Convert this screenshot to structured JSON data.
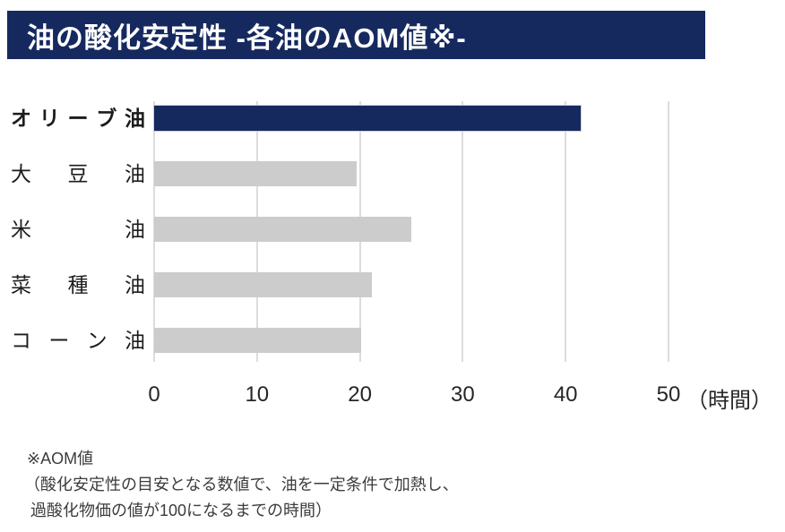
{
  "header": {
    "title": "油の酸化安定性 -各油のAOM値※-"
  },
  "colors": {
    "banner_bg": "#16295f",
    "banner_text": "#ffffff",
    "highlight_bar": "#16295f",
    "default_bar": "#cccccc",
    "gridline": "#dcdcdc"
  },
  "chart_data": {
    "type": "bar",
    "orientation": "horizontal",
    "title": "油の酸化安定性 -各油のAOM値※-",
    "categories": [
      "オリーブ油",
      "大豆油",
      "米油",
      "菜種油",
      "コーン油"
    ],
    "values": [
      41.5,
      19.7,
      25,
      21.2,
      20.1
    ],
    "highlight_index": 0,
    "xlabel": "（時間）",
    "unit": "時間",
    "xlim": [
      0,
      50
    ],
    "xticks": [
      0,
      10,
      20,
      30,
      40,
      50
    ],
    "grid": true,
    "legend": false
  },
  "footnote": {
    "lines": [
      "※AOM値",
      "（酸化安定性の目安となる数値で、油を一定条件で加熱し、",
      "過酸化物価の値が100になるまでの時間）"
    ]
  }
}
